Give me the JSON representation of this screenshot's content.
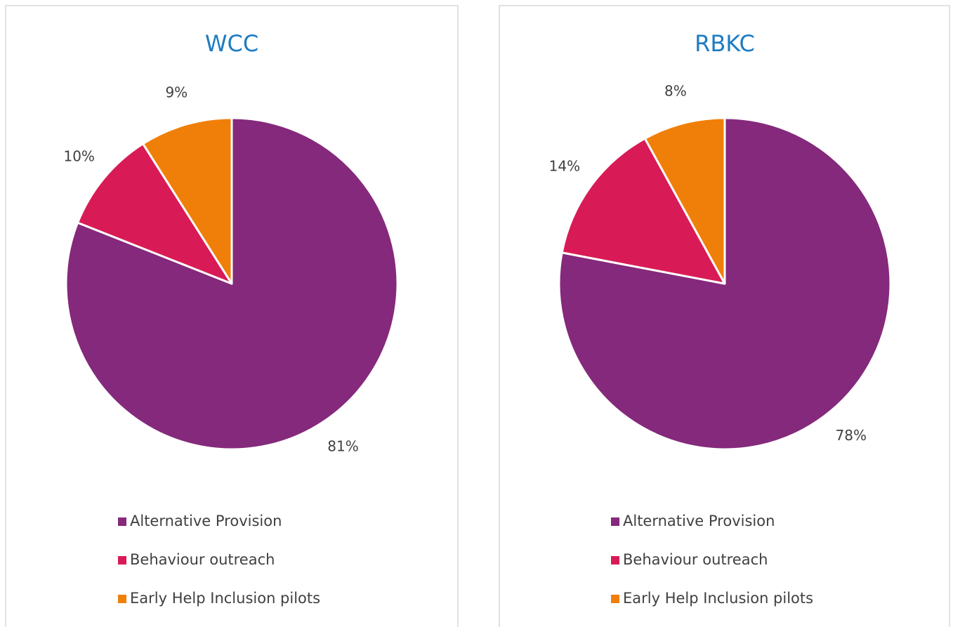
{
  "chart_data": [
    {
      "type": "pie",
      "title": "WCC",
      "categories": [
        "Alternative Provision",
        "Behaviour outreach",
        "Early Help Inclusion pilots"
      ],
      "values": [
        81,
        10,
        9
      ],
      "value_labels": [
        "81%",
        "10%",
        "9%"
      ],
      "colors": [
        "#84297b",
        "#d81b56",
        "#f07f09"
      ]
    },
    {
      "type": "pie",
      "title": "RBKC",
      "categories": [
        "Alternative Provision",
        "Behaviour outreach",
        "Early Help Inclusion pilots"
      ],
      "values": [
        78,
        14,
        8
      ],
      "value_labels": [
        "78%",
        "14%",
        "8%"
      ],
      "colors": [
        "#84297b",
        "#d81b56",
        "#f07f09"
      ]
    }
  ]
}
